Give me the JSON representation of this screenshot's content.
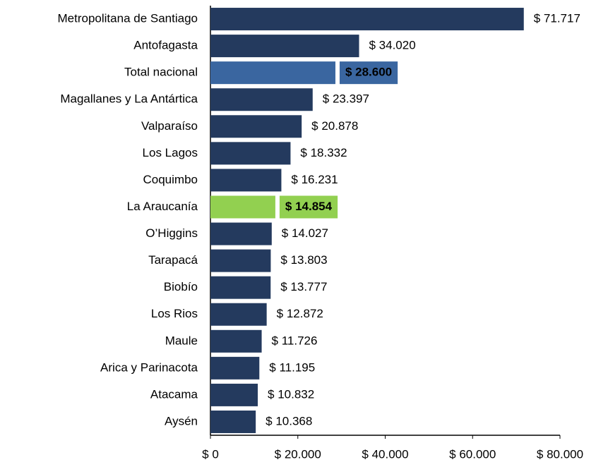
{
  "chart_data": {
    "type": "barh",
    "categories": [
      "Metropolitana de Santiago",
      "Antofagasta",
      "Total nacional",
      "Magallanes y La Antártica",
      "Valparaíso",
      "Los Lagos",
      "Coquimbo",
      "La Araucanía",
      "O’Higgins",
      "Tarapacá",
      "Biobío",
      "Los Rios",
      "Maule",
      "Arica y Parinacota",
      "Atacama",
      "Aysén"
    ],
    "values": [
      71717,
      34020,
      28600,
      23397,
      20878,
      18332,
      16231,
      14854,
      14027,
      13803,
      13777,
      12872,
      11726,
      11195,
      10832,
      10368
    ],
    "value_labels": [
      "$ 71.717",
      "$ 34.020",
      "$ 28.600",
      "$ 23.397",
      "$ 20.878",
      "$ 18.332",
      "$ 16.231",
      "$ 14.854",
      "$ 14.027",
      "$ 13.803",
      "$ 13.777",
      "$ 12.872",
      "$ 11.726",
      "$ 11.195",
      "$ 10.832",
      "$ 10.368"
    ],
    "colors": [
      "#243a5e",
      "#243a5e",
      "#3a66a0",
      "#243a5e",
      "#243a5e",
      "#243a5e",
      "#243a5e",
      "#92d050",
      "#243a5e",
      "#243a5e",
      "#243a5e",
      "#243a5e",
      "#243a5e",
      "#243a5e",
      "#243a5e",
      "#243a5e"
    ],
    "label_backgrounds": [
      null,
      null,
      "#3a66a0",
      null,
      null,
      null,
      null,
      "#92d050",
      null,
      null,
      null,
      null,
      null,
      null,
      null,
      null
    ],
    "xlim": [
      0,
      80000
    ],
    "xticks": [
      {
        "value": 0,
        "label": "$ 0"
      },
      {
        "value": 20000,
        "label": "$ 20.000"
      },
      {
        "value": 40000,
        "label": "$ 40.000"
      },
      {
        "value": 60000,
        "label": "$ 60.000"
      },
      {
        "value": 80000,
        "label": "$ 80.000"
      }
    ]
  }
}
